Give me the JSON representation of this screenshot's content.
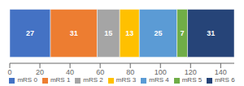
{
  "chart_data": {
    "type": "bar",
    "orientation": "horizontal",
    "stacked": true,
    "categories": [
      null
    ],
    "series": [
      {
        "name": "mRS 0",
        "color": "#4472C4",
        "values": [
          27
        ]
      },
      {
        "name": "mRS 1",
        "color": "#ED7D31",
        "values": [
          31
        ]
      },
      {
        "name": "mRS 2",
        "color": "#A5A5A5",
        "values": [
          15
        ]
      },
      {
        "name": "mRS 3",
        "color": "#FFC000",
        "values": [
          13
        ]
      },
      {
        "name": "mRS 4",
        "color": "#5B9BD5",
        "values": [
          25
        ]
      },
      {
        "name": "mRS 5",
        "color": "#70AD47",
        "values": [
          7
        ]
      },
      {
        "name": "mRS 6",
        "color": "#264478",
        "values": [
          31
        ]
      }
    ],
    "xlim": [
      0,
      149
    ],
    "xticks": [
      0,
      20,
      40,
      60,
      80,
      100,
      120,
      140
    ],
    "data_labels": true,
    "legend": "bottom",
    "grid": false,
    "tick_labels": "x"
  }
}
